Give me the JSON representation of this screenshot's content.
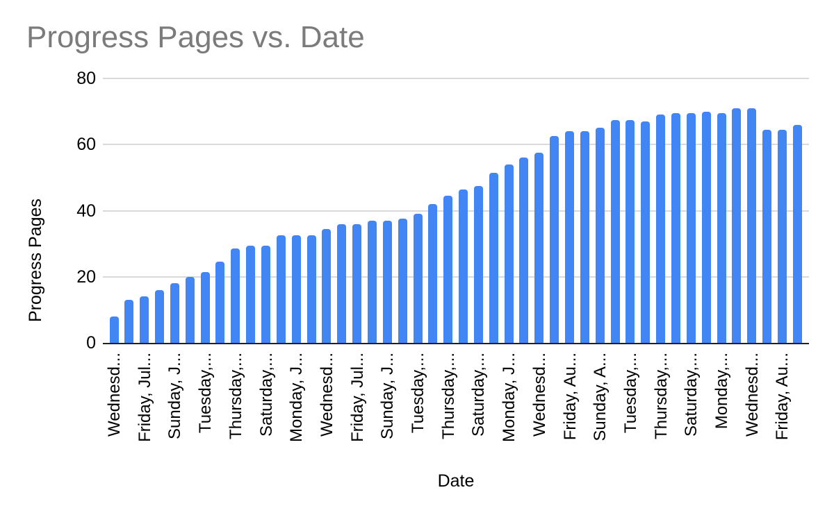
{
  "chart_data": {
    "type": "bar",
    "title": "Progress Pages vs. Date",
    "xlabel": "Date",
    "ylabel": "Progress Pages",
    "ylim": [
      0,
      80
    ],
    "yticks": [
      0,
      20,
      40,
      60,
      80
    ],
    "grid": true,
    "legend": "none",
    "bar_count": 46,
    "x_label_every_n_bars": 2,
    "x_tick_labels": [
      "Wednesd...",
      "Friday, Jul...",
      "Sunday, J...",
      "Tuesday,...",
      "Thursday,...",
      "Saturday,...",
      "Monday, J...",
      "Wednesd...",
      "Friday, Jul...",
      "Sunday, J...",
      "Tuesday,...",
      "Thursday,...",
      "Saturday,...",
      "Monday, J...",
      "Wednesd...",
      "Friday, Au...",
      "Sunday, A...",
      "Tuesday,...",
      "Thursday,...",
      "Saturday,...",
      "Monday,...",
      "Wednesd...",
      "Friday, Au..."
    ],
    "values": [
      8,
      13,
      14,
      16,
      18,
      20,
      21.5,
      24.5,
      28.5,
      29.5,
      29.5,
      32.5,
      32.5,
      32.5,
      34.5,
      36,
      36,
      37,
      37,
      37.5,
      39,
      42,
      44.5,
      46.5,
      47.5,
      51.5,
      54,
      56,
      57.5,
      62.5,
      64,
      64,
      65,
      67.5,
      67.5,
      67,
      69,
      69.5,
      69.5,
      70,
      69.5,
      71,
      71,
      64.5,
      64.5,
      66
    ],
    "colors": {
      "bar": "#4285f4",
      "gridline": "#d9d9d9",
      "axis_line": "#212121",
      "title_text": "#7b7b7b",
      "tick_text": "#000000"
    }
  }
}
